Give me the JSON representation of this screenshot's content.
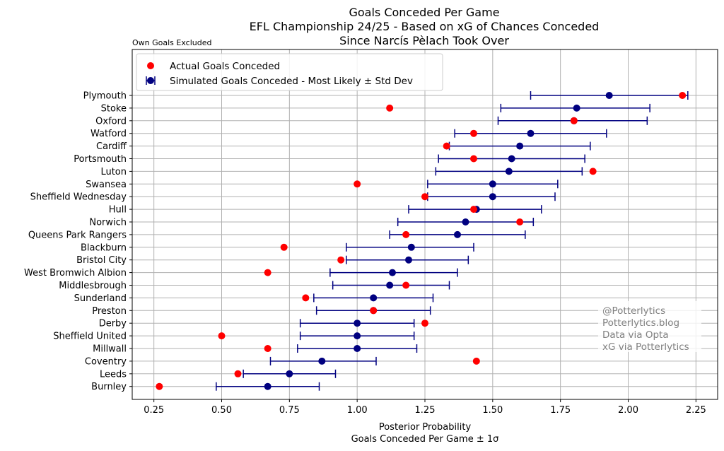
{
  "chart_data": {
    "type": "scatter",
    "title_lines": [
      "Goals Conceded Per Game",
      "EFL Championship 24/25 - Based on xG of Chances Conceded",
      "Since Narcís Pèlach Took Over"
    ],
    "note": "Own Goals Excluded",
    "xlabel_lines": [
      "Posterior Probability",
      "Goals Conceded Per Game ± 1σ"
    ],
    "xlim": [
      0.17,
      2.33
    ],
    "xticks": [
      0.25,
      0.5,
      0.75,
      1.0,
      1.25,
      1.5,
      1.75,
      2.0,
      2.25
    ],
    "xtick_labels": [
      "0.25",
      "0.50",
      "0.75",
      "1.00",
      "1.25",
      "1.50",
      "1.75",
      "2.00",
      "2.25"
    ],
    "grid": true,
    "legend_position": "top-left",
    "series": [
      {
        "name": "Actual Goals Conceded",
        "color": "#ff0000"
      },
      {
        "name": "Simulated Goals Conceded - Most Likely ± Std Dev",
        "color": "#000080"
      }
    ],
    "teams": [
      {
        "team": "Plymouth",
        "actual": 2.2,
        "sim": 1.93,
        "low": 1.64,
        "high": 2.22
      },
      {
        "team": "Stoke",
        "actual": 1.12,
        "sim": 1.81,
        "low": 1.53,
        "high": 2.08
      },
      {
        "team": "Oxford",
        "actual": 1.8,
        "sim": 1.8,
        "low": 1.52,
        "high": 2.07
      },
      {
        "team": "Watford",
        "actual": 1.43,
        "sim": 1.64,
        "low": 1.36,
        "high": 1.92
      },
      {
        "team": "Cardiff",
        "actual": 1.33,
        "sim": 1.6,
        "low": 1.34,
        "high": 1.86
      },
      {
        "team": "Portsmouth",
        "actual": 1.43,
        "sim": 1.57,
        "low": 1.3,
        "high": 1.84
      },
      {
        "team": "Luton",
        "actual": 1.87,
        "sim": 1.56,
        "low": 1.29,
        "high": 1.83
      },
      {
        "team": "Swansea",
        "actual": 1.0,
        "sim": 1.5,
        "low": 1.26,
        "high": 1.74
      },
      {
        "team": "Sheffield Wednesday",
        "actual": 1.25,
        "sim": 1.5,
        "low": 1.26,
        "high": 1.73
      },
      {
        "team": "Hull",
        "actual": 1.43,
        "sim": 1.44,
        "low": 1.19,
        "high": 1.68
      },
      {
        "team": "Norwich",
        "actual": 1.6,
        "sim": 1.4,
        "low": 1.15,
        "high": 1.65
      },
      {
        "team": "Queens Park Rangers",
        "actual": 1.18,
        "sim": 1.37,
        "low": 1.12,
        "high": 1.62
      },
      {
        "team": "Blackburn",
        "actual": 0.73,
        "sim": 1.2,
        "low": 0.96,
        "high": 1.43
      },
      {
        "team": "Bristol City",
        "actual": 0.94,
        "sim": 1.19,
        "low": 0.96,
        "high": 1.41
      },
      {
        "team": "West Bromwich Albion",
        "actual": 0.67,
        "sim": 1.13,
        "low": 0.9,
        "high": 1.37
      },
      {
        "team": "Middlesbrough",
        "actual": 1.18,
        "sim": 1.12,
        "low": 0.91,
        "high": 1.34
      },
      {
        "team": "Sunderland",
        "actual": 0.81,
        "sim": 1.06,
        "low": 0.84,
        "high": 1.28
      },
      {
        "team": "Preston",
        "actual": 1.06,
        "sim": 1.06,
        "low": 0.85,
        "high": 1.27
      },
      {
        "team": "Derby",
        "actual": 1.25,
        "sim": 1.0,
        "low": 0.79,
        "high": 1.21
      },
      {
        "team": "Sheffield United",
        "actual": 0.5,
        "sim": 1.0,
        "low": 0.79,
        "high": 1.21
      },
      {
        "team": "Millwall",
        "actual": 0.67,
        "sim": 1.0,
        "low": 0.78,
        "high": 1.22
      },
      {
        "team": "Coventry",
        "actual": 1.44,
        "sim": 0.87,
        "low": 0.68,
        "high": 1.07
      },
      {
        "team": "Leeds",
        "actual": 0.56,
        "sim": 0.75,
        "low": 0.58,
        "high": 0.92
      },
      {
        "team": "Burnley",
        "actual": 0.27,
        "sim": 0.67,
        "low": 0.48,
        "high": 0.86
      }
    ]
  },
  "watermark_lines": [
    "@Potterlytics",
    "Potterlytics.blog",
    "Data via Opta",
    "xG via Potterlytics"
  ]
}
